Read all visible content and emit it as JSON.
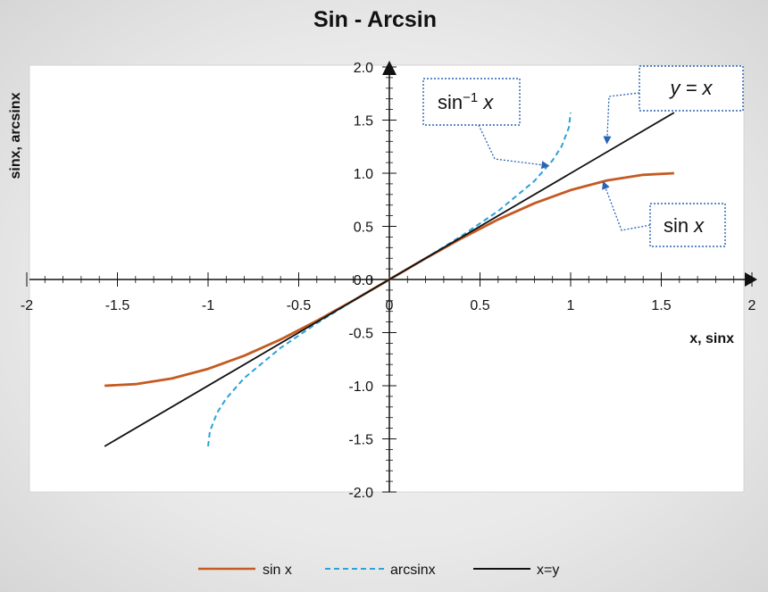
{
  "chart_data": {
    "type": "line",
    "title": "Sin - Arcsin",
    "xlabel": "x, sinx",
    "ylabel": "sinx, arcsinx",
    "xlim": [
      -2,
      2
    ],
    "ylim": [
      -2,
      2
    ],
    "x_ticks": [
      "-2",
      "-1.5",
      "-1",
      "-0.5",
      "0",
      "0.5",
      "1",
      "1.5",
      "2"
    ],
    "y_ticks": [
      "-2.0",
      "-1.5",
      "-1.0",
      "-0.5",
      "0.0",
      "0.5",
      "1.0",
      "1.5",
      "2.0"
    ],
    "legend_position": "bottom",
    "grid": false,
    "series": [
      {
        "name": "sin x",
        "color": "#c55a22",
        "style": "solid",
        "x": [
          -1.571,
          -1.4,
          -1.2,
          -1.0,
          -0.8,
          -0.6,
          -0.4,
          -0.2,
          0,
          0.2,
          0.4,
          0.6,
          0.8,
          1.0,
          1.2,
          1.4,
          1.571
        ],
        "y": [
          -1.0,
          -0.985,
          -0.932,
          -0.841,
          -0.717,
          -0.565,
          -0.389,
          -0.199,
          0,
          0.199,
          0.389,
          0.565,
          0.717,
          0.841,
          0.932,
          0.985,
          1.0
        ]
      },
      {
        "name": "arcsinx",
        "color": "#2aa3d9",
        "style": "dashed",
        "x": [
          -1.0,
          -0.99,
          -0.95,
          -0.9,
          -0.8,
          -0.6,
          -0.4,
          -0.2,
          0,
          0.2,
          0.4,
          0.6,
          0.8,
          0.9,
          0.95,
          0.99,
          1.0
        ],
        "y": [
          -1.571,
          -1.429,
          -1.253,
          -1.12,
          -0.927,
          -0.644,
          -0.412,
          -0.201,
          0,
          0.201,
          0.412,
          0.644,
          0.927,
          1.12,
          1.253,
          1.429,
          1.571
        ]
      },
      {
        "name": "x=y",
        "color": "#111111",
        "style": "solid",
        "x": [
          -1.571,
          1.571
        ],
        "y": [
          -1.571,
          1.571
        ]
      }
    ],
    "annotations": [
      {
        "id": "arcsin",
        "label": "sin",
        "sup": "−1",
        "var": "x",
        "points_to": [
          0.88,
          1.07
        ]
      },
      {
        "id": "identity",
        "label": "y = x",
        "points_to": [
          1.2,
          1.28
        ]
      },
      {
        "id": "sin",
        "label": "sin",
        "var": "x",
        "points_to": [
          1.18,
          0.92
        ]
      }
    ]
  }
}
